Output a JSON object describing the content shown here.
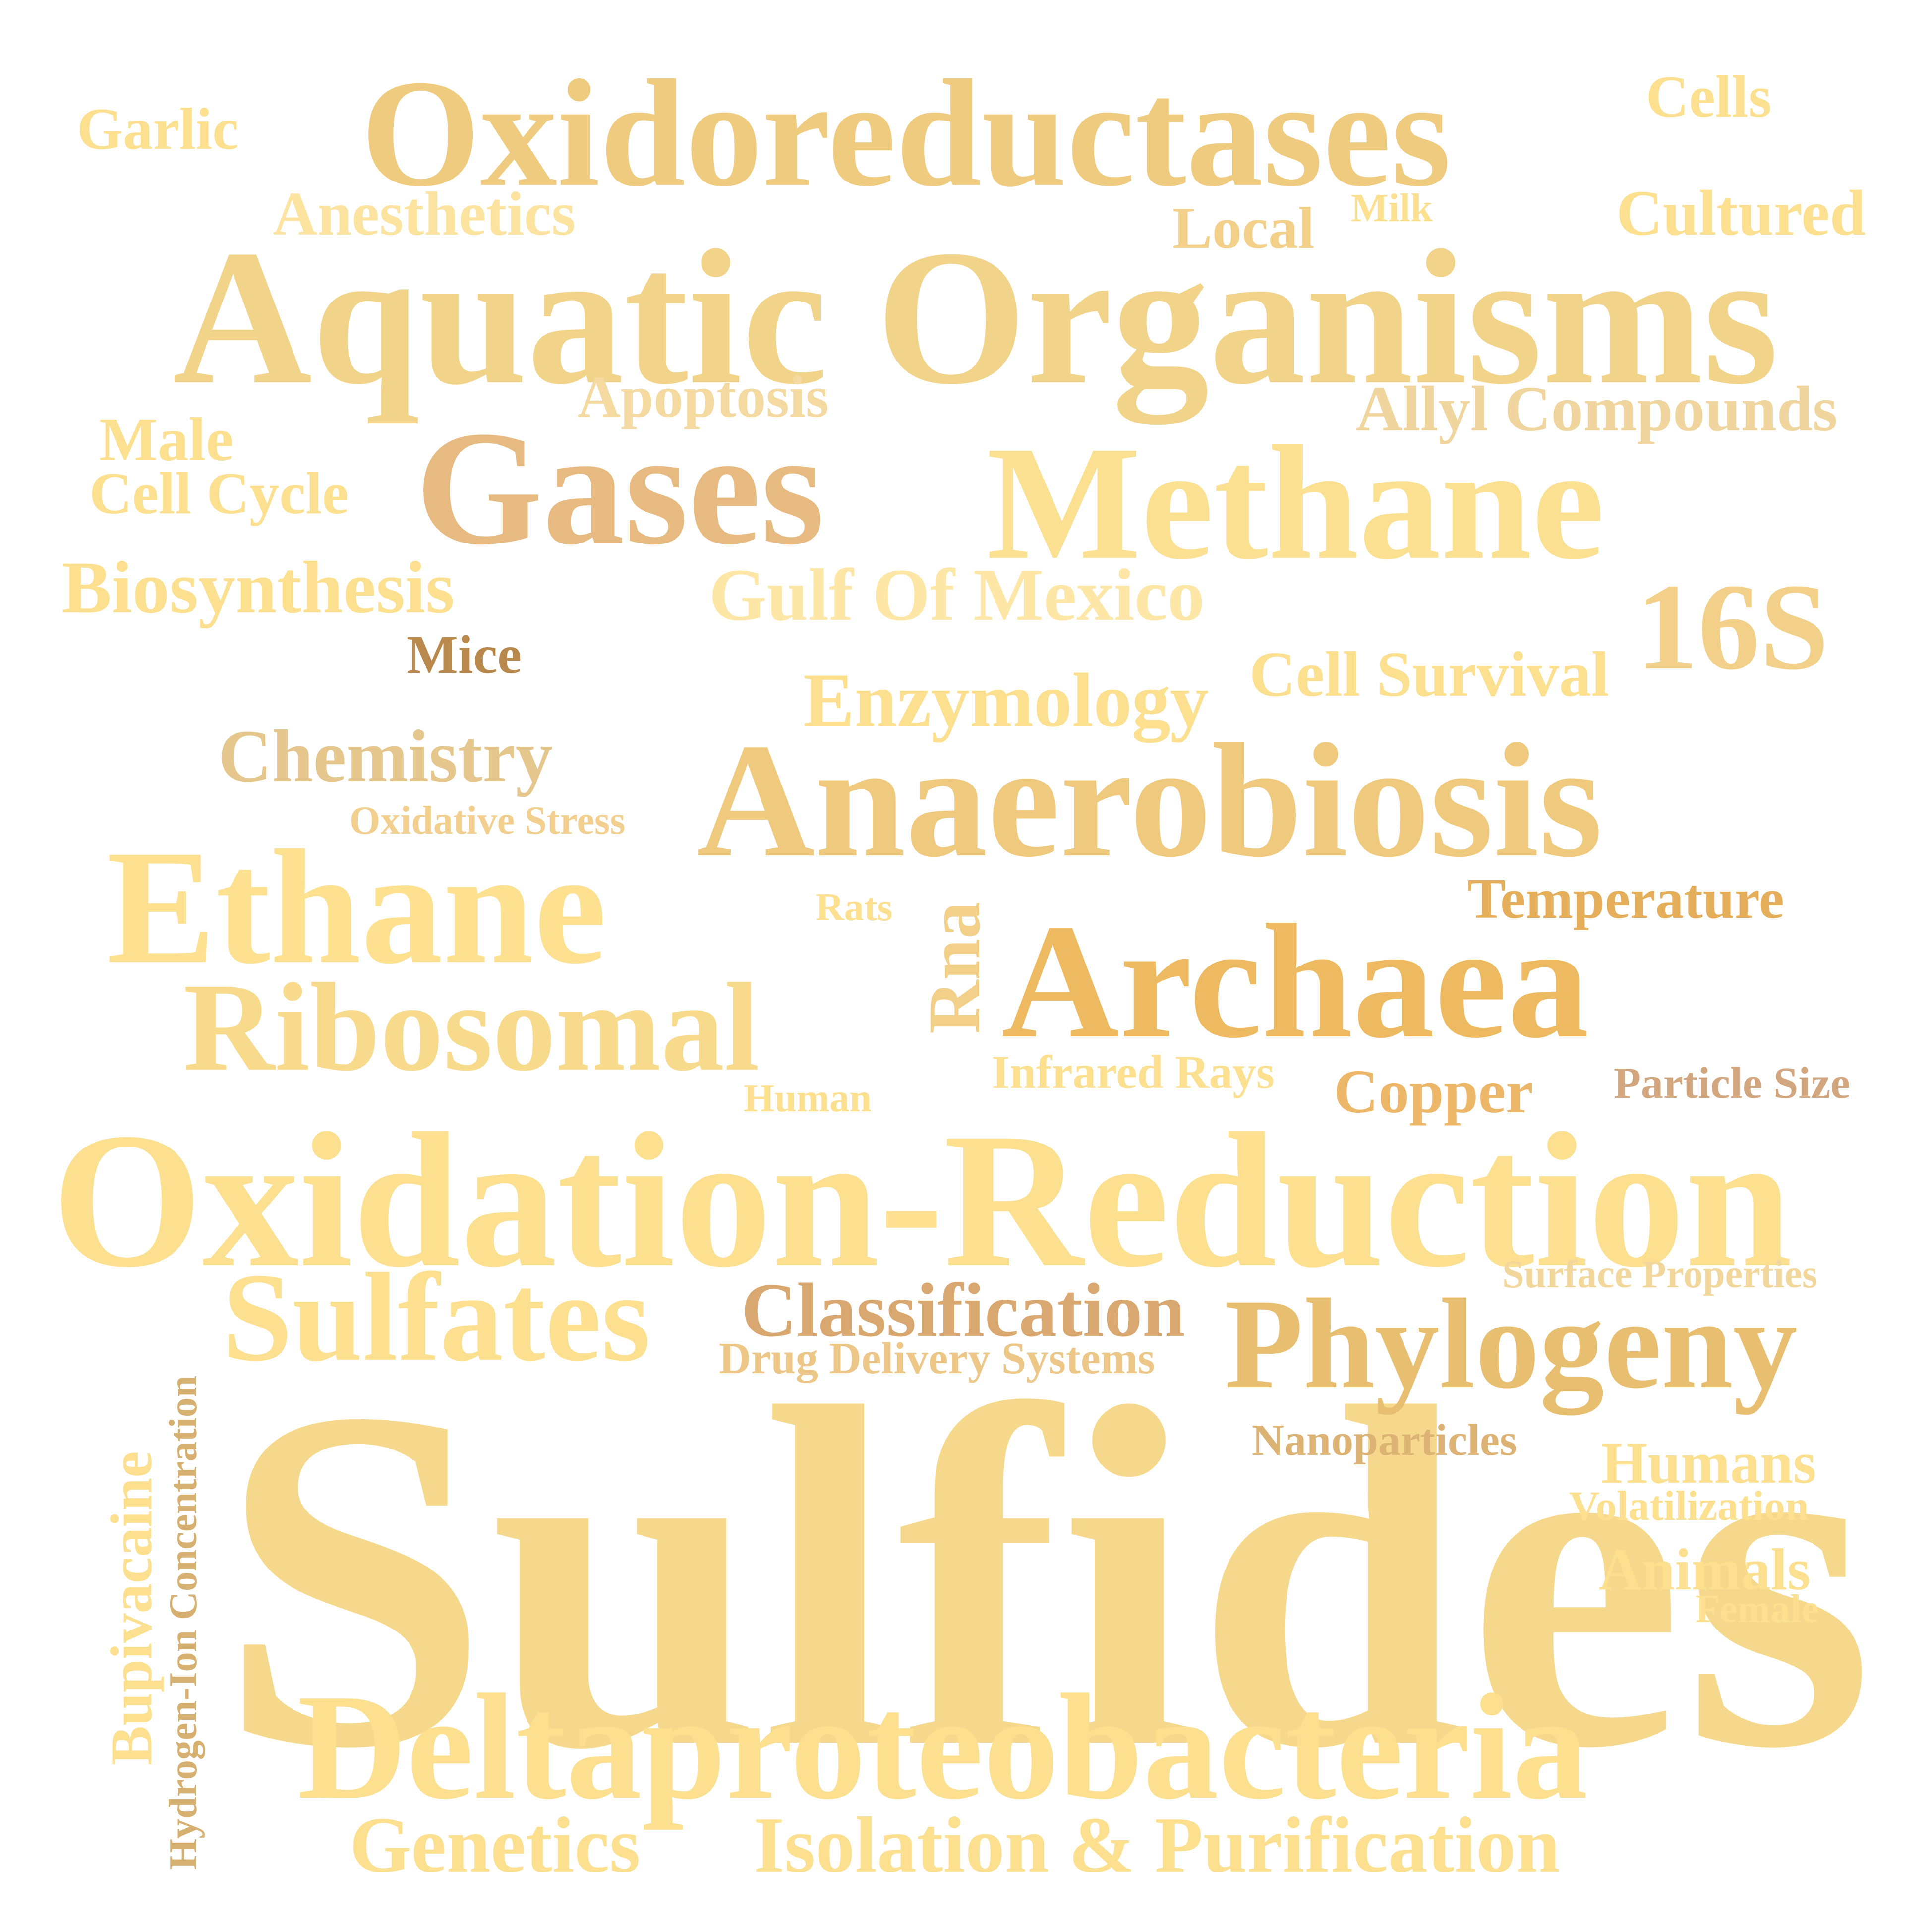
{
  "words": {
    "sulfides": {
      "text": "Sulfides",
      "color": "#F6D88C"
    },
    "oxidation_reduction": {
      "text": "Oxidation-Reduction",
      "color": "#FCE08F"
    },
    "aquatic_organisms": {
      "text": "Aquatic Organisms",
      "color": "#F2D38A"
    },
    "oxidoreductases": {
      "text": "Oxidoreductases",
      "color": "#EFCB80"
    },
    "deltaproteobacteria": {
      "text": "Deltaproteobacteria",
      "color": "#FCE08F"
    },
    "anaerobiosis": {
      "text": "Anaerobiosis",
      "color": "#EFC97E"
    },
    "methane": {
      "text": "Methane",
      "color": "#FBE092"
    },
    "archaea": {
      "text": "Archaea",
      "color": "#EDBA62"
    },
    "ethane": {
      "text": "Ethane",
      "color": "#FDE191"
    },
    "gases": {
      "text": "Gases",
      "color": "#E7BA82"
    },
    "ribosomal": {
      "text": "Ribosomal",
      "color": "#F8DA8C"
    },
    "phylogeny": {
      "text": "Phylogeny",
      "color": "#E8BE70"
    },
    "sulfates": {
      "text": "Sulfates",
      "color": "#FCE08F"
    },
    "s16": {
      "text": "16S",
      "color": "#F2D08A"
    },
    "classification": {
      "text": "Classification",
      "color": "#D9A870"
    },
    "isolation_purification": {
      "text": "Isolation & Purification",
      "color": "#FCE08F"
    },
    "genetics": {
      "text": "Genetics",
      "color": "#FCE08F"
    },
    "enzymology": {
      "text": "Enzymology",
      "color": "#FCE08F"
    },
    "chemistry": {
      "text": "Chemistry",
      "color": "#E5C68C"
    },
    "gulf_of_mexico": {
      "text": "Gulf Of Mexico",
      "color": "#FDE6A6"
    },
    "biosynthesis": {
      "text": "Biosynthesis",
      "color": "#FCE08F"
    },
    "allyl_compounds": {
      "text": "Allyl Compounds",
      "color": "#F1D59E"
    },
    "apoptosis": {
      "text": "Apoptosis",
      "color": "#F4D9A0"
    },
    "anesthetics": {
      "text": "Anesthetics",
      "color": "#FCE3A0"
    },
    "cell_survival": {
      "text": "Cell Survival",
      "color": "#FCE08F"
    },
    "temperature": {
      "text": "Temperature",
      "color": "#E5AE5A"
    },
    "copper": {
      "text": "Copper",
      "color": "#EDB76A"
    },
    "cultured": {
      "text": "Cultured",
      "color": "#FCE08F"
    },
    "cells": {
      "text": "Cells",
      "color": "#FCE08F"
    },
    "garlic": {
      "text": "Garlic",
      "color": "#FCE08F"
    },
    "local": {
      "text": "Local",
      "color": "#F2D08A"
    },
    "milk": {
      "text": "Milk",
      "color": "#FCE08F"
    },
    "male": {
      "text": "Male",
      "color": "#FCE08F"
    },
    "cell_cycle": {
      "text": "Cell Cycle",
      "color": "#FCE08F"
    },
    "mice": {
      "text": "Mice",
      "color": "#B9884D"
    },
    "oxidative_stress": {
      "text": "Oxidative Stress",
      "color": "#F2CF8E"
    },
    "rats": {
      "text": "Rats",
      "color": "#FCE08F"
    },
    "rna": {
      "text": "Rna",
      "color": "#F2D08A"
    },
    "infrared_rays": {
      "text": "Infrared Rays",
      "color": "#FCE08F"
    },
    "particle_size": {
      "text": "Particle Size",
      "color": "#D2A67E"
    },
    "human": {
      "text": "Human",
      "color": "#FCE08F"
    },
    "surface_properties": {
      "text": "Surface Properties",
      "color": "#F1D79C"
    },
    "drug_delivery_systems": {
      "text": "Drug Delivery Systems",
      "color": "#EDC788"
    },
    "nanoparticles": {
      "text": "Nanoparticles",
      "color": "#DDB275"
    },
    "humans": {
      "text": "Humans",
      "color": "#FCE08F"
    },
    "volatilization": {
      "text": "Volatilization",
      "color": "#FCE08F"
    },
    "animals": {
      "text": "Animals",
      "color": "#FCE08F"
    },
    "female": {
      "text": "Female",
      "color": "#FCE08F"
    },
    "bupivacaine": {
      "text": "Bupivacaine",
      "color": "#FCE08F"
    },
    "hydrogen_ion_concentration": {
      "text": "Hydrogen-Ion Concentration",
      "color": "#D6B070"
    }
  }
}
